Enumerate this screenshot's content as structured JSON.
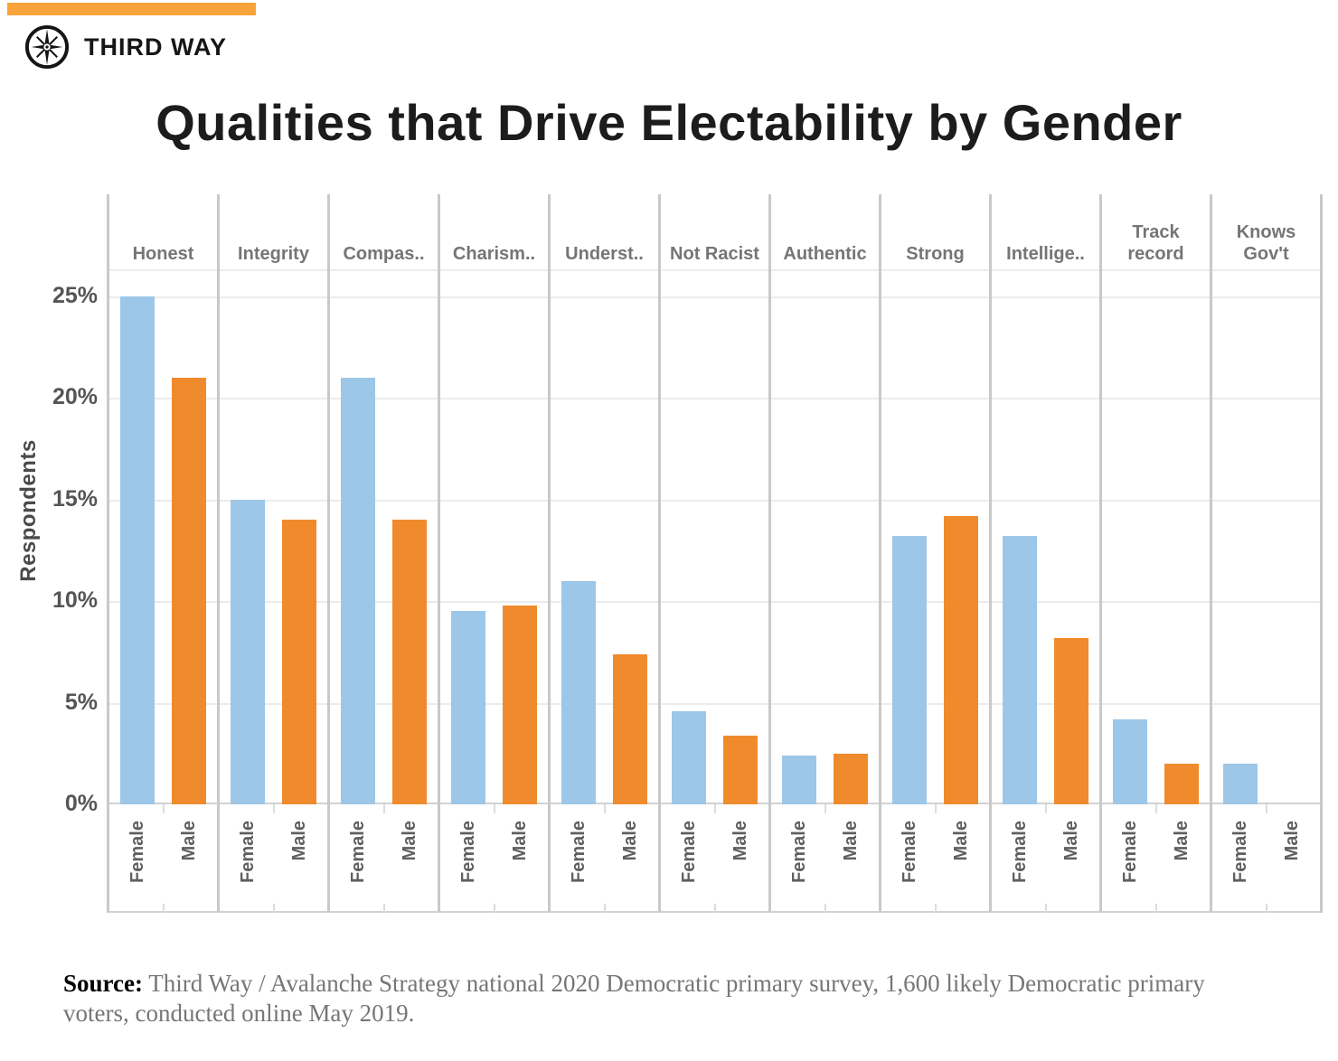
{
  "brand": {
    "name": "THIRD WAY"
  },
  "title": "Qualities that Drive Electability by Gender",
  "source": {
    "label": "Source:",
    "text": " Third Way / Avalanche Strategy national 2020 Democratic primary survey, 1,600 likely Democratic primary voters, conducted online May 2019."
  },
  "colors": {
    "banner_orange": "#F9A43B",
    "female_blue": "#9CC7E8",
    "male_orange": "#F08B2D",
    "divider": "#C9C9C9",
    "gridline": "#ECECEC",
    "axis_line": "#D2D2D2",
    "header_text": "#757575",
    "tick_text": "#555555",
    "title_text": "#1C1C1C"
  },
  "chart_data": {
    "type": "bar",
    "title": "Qualities that Drive Electability by Gender",
    "ylabel": "Respondents",
    "xlabel": "",
    "categories": [
      "Honest",
      "Integrity",
      "Compas..",
      "Charism..",
      "Underst..",
      "Not Racist",
      "Authentic",
      "Strong",
      "Intellige..",
      "Track record",
      "Knows Gov't"
    ],
    "group_labels": [
      "Female",
      "Male"
    ],
    "series": [
      {
        "name": "Female",
        "color": "#9CC7E8",
        "values": [
          25,
          15,
          21,
          9.5,
          11,
          4.6,
          2.4,
          13.2,
          13.2,
          4.2,
          2
        ]
      },
      {
        "name": "Male",
        "color": "#F08B2D",
        "values": [
          21,
          14,
          14,
          9.8,
          7.4,
          3.4,
          2.5,
          14.2,
          8.2,
          2,
          0
        ]
      }
    ],
    "unit": "%",
    "yticks": [
      0,
      5,
      10,
      15,
      20,
      25
    ],
    "ytick_labels": [
      "0%",
      "5%",
      "10%",
      "15%",
      "20%",
      "25%"
    ],
    "ylim": [
      0,
      26.25
    ],
    "grid": true,
    "legend": false
  }
}
